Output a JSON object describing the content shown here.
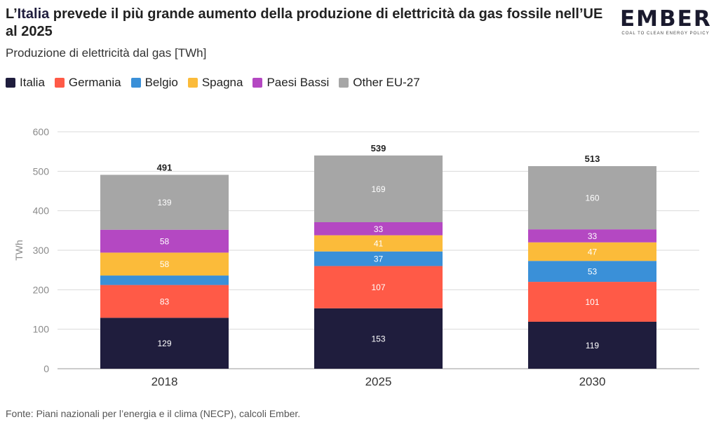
{
  "header": {
    "title_prefix": "L’",
    "title_highlight": "Italia",
    "title_rest": " prevede il più grande aumento della produzione di elettricità da gas fossile nell’UE al 2025",
    "subtitle": "Produzione di elettricità dal gas [TWh]"
  },
  "logo": {
    "word": "EMBER",
    "tagline": "COAL TO CLEAN ENERGY POLICY"
  },
  "source": "Fonte: Piani nazionali per l’energia e il clima (NECP), calcoli Ember.",
  "colors": {
    "Italia": "#1f1d3d",
    "Germania": "#ff5a47",
    "Belgio": "#3a90d8",
    "Spagna": "#fbbb3a",
    "Paesi Bassi": "#b448c2",
    "Other EU-27": "#a6a6a6"
  },
  "chart_data": {
    "type": "bar",
    "stacked": true,
    "categories": [
      "2018",
      "2025",
      "2030"
    ],
    "series": [
      {
        "name": "Italia",
        "values": [
          129,
          153,
          119
        ]
      },
      {
        "name": "Germania",
        "values": [
          83,
          107,
          101
        ]
      },
      {
        "name": "Belgio",
        "values": [
          24,
          37,
          53
        ]
      },
      {
        "name": "Spagna",
        "values": [
          58,
          41,
          47
        ]
      },
      {
        "name": "Paesi Bassi",
        "values": [
          58,
          33,
          33
        ]
      },
      {
        "name": "Other EU-27",
        "values": [
          139,
          169,
          160
        ]
      }
    ],
    "data_labels": [
      [
        "129",
        "153",
        "119"
      ],
      [
        "83",
        "107",
        "101"
      ],
      [
        "",
        "37",
        "53"
      ],
      [
        "58",
        "41",
        "47"
      ],
      [
        "58",
        "33",
        "33"
      ],
      [
        "139",
        "169",
        "160"
      ]
    ],
    "totals": [
      "491",
      "539",
      "513"
    ],
    "ylabel": "TWh",
    "xlabel": "",
    "ylim": [
      0,
      600
    ],
    "yticks": [
      "0",
      "100",
      "200",
      "300",
      "400",
      "500",
      "600"
    ],
    "grid": true,
    "legend_position": "top-left"
  }
}
